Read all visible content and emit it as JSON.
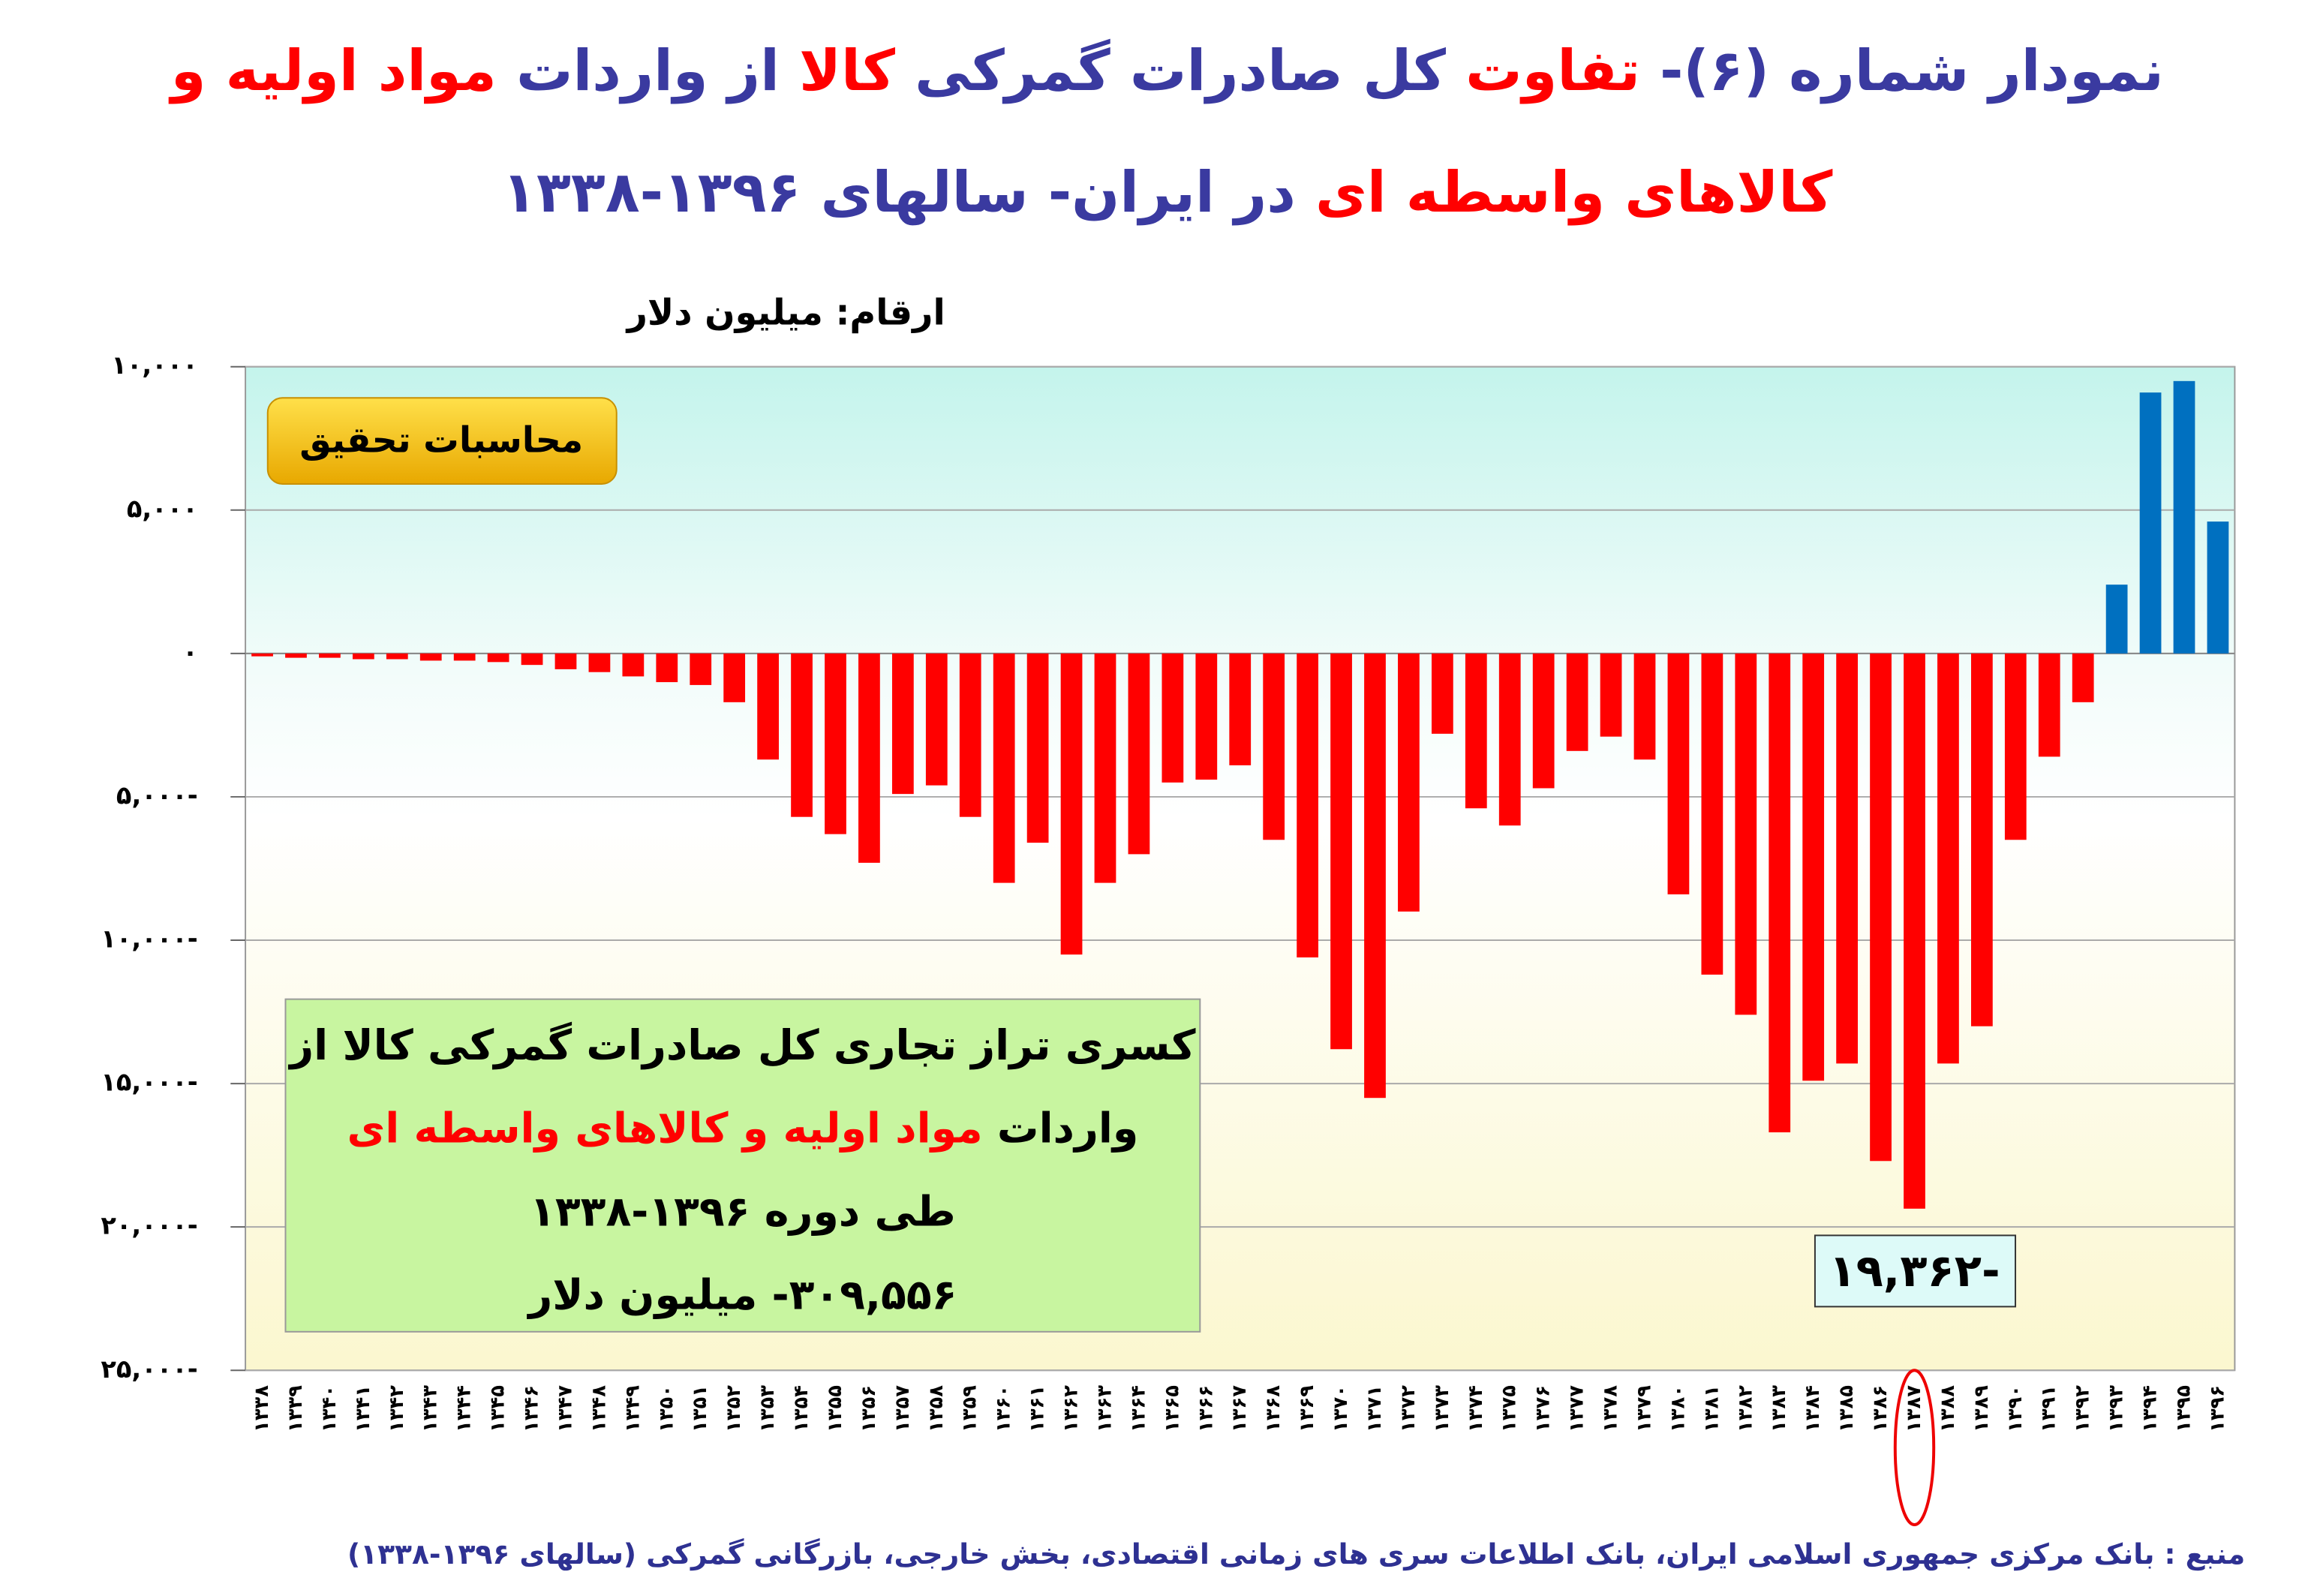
{
  "chart_data": {
    "type": "bar",
    "title": [
      [
        {
          "text": "نمودار شماره (۶)- ",
          "color": "#3a3aa0"
        },
        {
          "text": "تفاوت",
          "color": "#ff0000"
        },
        {
          "text": " کل صادرات گمرکی ",
          "color": "#3a3aa0"
        },
        {
          "text": "کالا",
          "color": "#ff0000"
        },
        {
          "text": " از واردات ",
          "color": "#3a3aa0"
        },
        {
          "text": "مواد اولیه و",
          "color": "#ff0000"
        }
      ],
      [
        {
          "text": "کالاهای واسطه ای",
          "color": "#ff0000"
        },
        {
          "text": " در ایران- سالهای ۱۳۹۶-۱۳۳۸",
          "color": "#3a3aa0"
        }
      ]
    ],
    "y_axis_label": "ارقام: میلیون دلار",
    "badge": "محاسبات تحقیق",
    "note": [
      [
        {
          "text": "کسری تراز تجاری کل صادرات گمرکی کالا از",
          "color": "#000000"
        }
      ],
      [
        {
          "text": "واردات ",
          "color": "#000000"
        },
        {
          "text": "مواد اولیه و کالاهای واسطه ای",
          "color": "#ff0000"
        }
      ],
      [
        {
          "text": "طی دوره ۱۳۹۶-۱۳۳۸",
          "color": "#000000"
        }
      ],
      [
        {
          "text": "۳۰۹,۵۵۶- میلیون دلار",
          "color": "#000000"
        }
      ]
    ],
    "source": "منبع : بانک مرکزی جمهوری اسلامی ایران، بانک اطلاعات سری های زمانی اقتصادی، بخش خارجی، بازرگانی گمرکی (سالهای ۱۳۹۶-۱۳۳۸)",
    "categories": [
      "۱۳۳۸",
      "۱۳۳۹",
      "۱۳۴۰",
      "۱۳۴۱",
      "۱۳۴۲",
      "۱۳۴۳",
      "۱۳۴۴",
      "۱۳۴۵",
      "۱۳۴۶",
      "۱۳۴۷",
      "۱۳۴۸",
      "۱۳۴۹",
      "۱۳۵۰",
      "۱۳۵۱",
      "۱۳۵۲",
      "۱۳۵۳",
      "۱۳۵۴",
      "۱۳۵۵",
      "۱۳۵۶",
      "۱۳۵۷",
      "۱۳۵۸",
      "۱۳۵۹",
      "۱۳۶۰",
      "۱۳۶۱",
      "۱۳۶۲",
      "۱۳۶۳",
      "۱۳۶۴",
      "۱۳۶۵",
      "۱۳۶۶",
      "۱۳۶۷",
      "۱۳۶۸",
      "۱۳۶۹",
      "۱۳۷۰",
      "۱۳۷۱",
      "۱۳۷۲",
      "۱۳۷۳",
      "۱۳۷۴",
      "۱۳۷۵",
      "۱۳۷۶",
      "۱۳۷۷",
      "۱۳۷۸",
      "۱۳۷۹",
      "۱۳۸۰",
      "۱۳۸۱",
      "۱۳۸۲",
      "۱۳۸۳",
      "۱۳۸۴",
      "۱۳۸۵",
      "۱۳۸۶",
      "۱۳۸۷",
      "۱۳۸۸",
      "۱۳۸۹",
      "۱۳۹۰",
      "۱۳۹۱",
      "۱۳۹۲",
      "۱۳۹۳",
      "۱۳۹۴",
      "۱۳۹۵",
      "۱۳۹۶"
    ],
    "values": [
      -100,
      -150,
      -150,
      -200,
      -200,
      -250,
      -250,
      -300,
      -400,
      -550,
      -650,
      -800,
      -1000,
      -1100,
      -1700,
      -3700,
      -5700,
      -6300,
      -7300,
      -4900,
      -4600,
      -5700,
      -8000,
      -6600,
      -10500,
      -8000,
      -7000,
      -4500,
      -4400,
      -3900,
      -6500,
      -10600,
      -13800,
      -15500,
      -9000,
      -2800,
      -5400,
      -6000,
      -4700,
      -3400,
      -2900,
      -3700,
      -8400,
      -11200,
      -12600,
      -16700,
      -14900,
      -14300,
      -17700,
      -19362,
      -14300,
      -13000,
      -6500,
      -3600,
      -1700,
      2400,
      9100,
      9500,
      4600
    ],
    "value_labels": [
      null,
      null,
      null,
      null,
      null,
      null,
      null,
      null,
      null,
      null,
      null,
      null,
      null,
      null,
      null,
      null,
      null,
      null,
      null,
      null,
      null,
      null,
      null,
      null,
      null,
      null,
      null,
      null,
      null,
      null,
      null,
      null,
      null,
      null,
      null,
      null,
      null,
      null,
      null,
      null,
      null,
      null,
      null,
      null,
      null,
      null,
      null,
      null,
      null,
      "۱۹,۳۶۲-",
      null,
      null,
      null,
      null,
      null,
      null,
      null,
      null,
      null
    ],
    "color": "#ff0000",
    "positive_color": "#0070c0",
    "ylim": [
      -25000,
      10000
    ],
    "yticks": [
      {
        "value": 10000,
        "label": "۱۰,۰۰۰"
      },
      {
        "value": 5000,
        "label": "۵,۰۰۰"
      },
      {
        "value": 0,
        "label": "۰"
      },
      {
        "value": -5000,
        "label": "۵,۰۰۰-"
      },
      {
        "value": -10000,
        "label": "۱۰,۰۰۰-"
      },
      {
        "value": -15000,
        "label": "۱۵,۰۰۰-"
      },
      {
        "value": -20000,
        "label": "۲۰,۰۰۰-"
      },
      {
        "value": -25000,
        "label": "۲۵,۰۰۰-"
      }
    ],
    "grid": true
  }
}
